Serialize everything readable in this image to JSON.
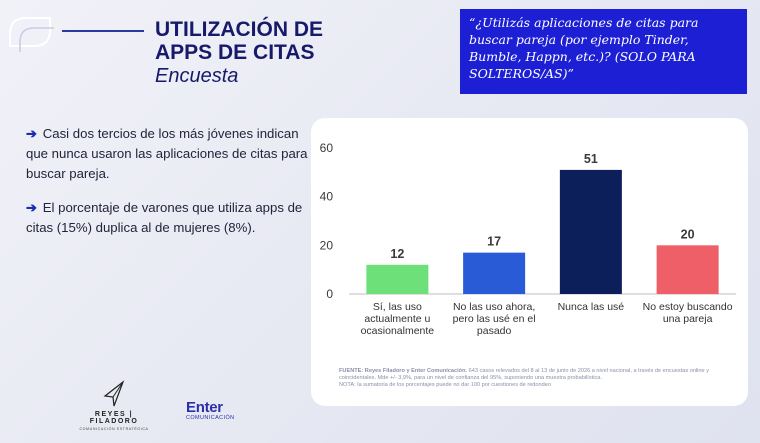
{
  "header": {
    "title_line1": "UTILIZACIÓN DE",
    "title_line2": "APPS DE CITAS",
    "subtitle": "Encuesta"
  },
  "question": "“¿Utilizás aplicaciones de citas para buscar pareja (por ejemplo Tinder, Bumble, Happn, etc.)? (SOLO PARA SOLTEROS/AS)”",
  "bullets": [
    "Casi dos tercios de los más jóvenes indican que nunca usaron las aplicaciones de citas para buscar pareja.",
    "El porcentaje de varones que utiliza apps de citas (15%) duplica al de mujeres (8%)."
  ],
  "bullet_marker": "➔",
  "chart_data": {
    "type": "bar",
    "categories": [
      "Sí, las uso actualmente u ocasionalmente",
      "No las uso ahora, pero las usé en el pasado",
      "Nunca las usé",
      "No estoy buscando una pareja"
    ],
    "values": [
      12,
      17,
      51,
      20
    ],
    "colors": [
      "#6ee07a",
      "#2a5bd6",
      "#0d1f5a",
      "#ee5f68"
    ],
    "ylim": [
      0,
      60
    ],
    "yticks": [
      0,
      20,
      40,
      60
    ],
    "grid": false
  },
  "note": {
    "source_bold": "FUENTE: Reyes Filadoro y Enter Comunicación.",
    "source_text": " 643 casos relevados del 8 al 13 de junio de 2026 a nivel nacional, a través de encuestas online y coincidentales. Mde +/- 3,9%, para un nivel de confianza del 95%, suponiendo una muestra probabilística.",
    "line2": "NOTA: la sumatoria de los porcentajes puede no dar 100 por cuestiones de redondeo"
  },
  "footer": {
    "logo1_name": "REYES | FILADORO",
    "logo1_sub": "COMUNICACIÓN ESTRATÉGICA",
    "logo2_name": "Enter",
    "logo2_sub": "COMUNICACIÓN"
  },
  "colors": {
    "title": "#17196a",
    "question_bg": "#1c1fd4",
    "accent": "#1c2bb0"
  }
}
